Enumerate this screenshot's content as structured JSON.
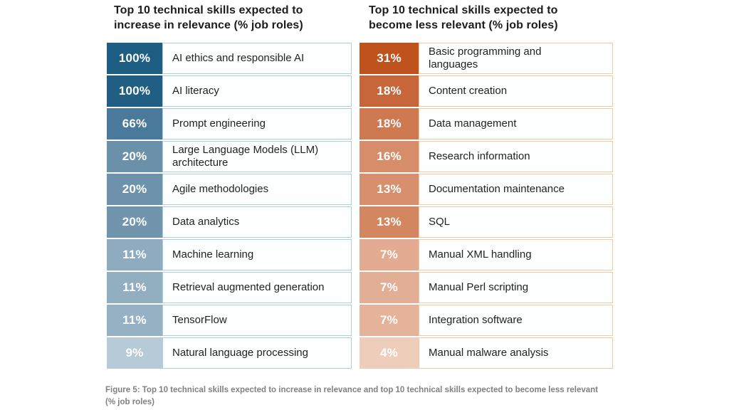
{
  "caption": "Figure 5: Top 10 technical skills expected to increase in relevance and top 10 technical skills expected to become less relevant (% job roles)",
  "tables": [
    {
      "title": "Top 10 technical skills expected to increase in relevance (% job roles)",
      "border_color": "#a9cfe0",
      "rows": [
        {
          "value": "100%",
          "label": "AI ethics and responsible AI",
          "color": "#1e5e82"
        },
        {
          "value": "100%",
          "label": "AI literacy",
          "color": "#205f83"
        },
        {
          "value": "66%",
          "label": "Prompt engineering",
          "color": "#4a7a9b"
        },
        {
          "value": "20%",
          "label": "Large Language Models (LLM)\narchitecture",
          "color": "#6b90a9"
        },
        {
          "value": "20%",
          "label": "Agile methodologies",
          "color": "#6e92ab"
        },
        {
          "value": "20%",
          "label": "Data analytics",
          "color": "#7195ad"
        },
        {
          "value": "11%",
          "label": "Machine learning",
          "color": "#8eabbf"
        },
        {
          "value": "11%",
          "label": "Retrieval augmented generation",
          "color": "#92aec1"
        },
        {
          "value": "11%",
          "label": "TensorFlow",
          "color": "#96b1c3"
        },
        {
          "value": "9%",
          "label": "Natural language processing",
          "color": "#b7cad7"
        }
      ]
    },
    {
      "title": "Top 10 technical skills expected to become less relevant (% job roles)",
      "border_color": "#f3c9a0",
      "rows": [
        {
          "value": "31%",
          "label": "Basic programming and\nlanguages",
          "color": "#c0521d"
        },
        {
          "value": "18%",
          "label": "Content creation",
          "color": "#c7663a"
        },
        {
          "value": "18%",
          "label": "Data management",
          "color": "#ce7950"
        },
        {
          "value": "16%",
          "label": "Research information",
          "color": "#d78d6a"
        },
        {
          "value": "13%",
          "label": "Documentation maintenance",
          "color": "#d78f6e"
        },
        {
          "value": "13%",
          "label": "SQL",
          "color": "#d38660"
        },
        {
          "value": "7%",
          "label": "Manual XML handling",
          "color": "#e2ab92"
        },
        {
          "value": "7%",
          "label": "Manual Perl scripting",
          "color": "#e3ae96"
        },
        {
          "value": "7%",
          "label": "Integration software",
          "color": "#e5b29a"
        },
        {
          "value": "4%",
          "label": "Manual malware analysis",
          "color": "#eeceba"
        }
      ]
    }
  ],
  "chart_data": [
    {
      "type": "table",
      "title": "Top 10 technical skills expected to increase in relevance (% job roles)",
      "categories": [
        "AI ethics and responsible AI",
        "AI literacy",
        "Prompt engineering",
        "Large Language Models (LLM) architecture",
        "Agile methodologies",
        "Data analytics",
        "Machine learning",
        "Retrieval augmented generation",
        "TensorFlow",
        "Natural language processing"
      ],
      "values": [
        100,
        100,
        66,
        20,
        20,
        20,
        11,
        11,
        11,
        9
      ],
      "unit": "% job roles",
      "accent_color": "#1e5e82"
    },
    {
      "type": "table",
      "title": "Top 10 technical skills expected to become less relevant (% job roles)",
      "categories": [
        "Basic programming and languages",
        "Content creation",
        "Data management",
        "Research information",
        "Documentation maintenance",
        "SQL",
        "Manual XML handling",
        "Manual Perl scripting",
        "Integration software",
        "Manual malware analysis"
      ],
      "values": [
        31,
        18,
        18,
        16,
        13,
        13,
        7,
        7,
        7,
        4
      ],
      "unit": "% job roles",
      "accent_color": "#c0521d"
    }
  ]
}
